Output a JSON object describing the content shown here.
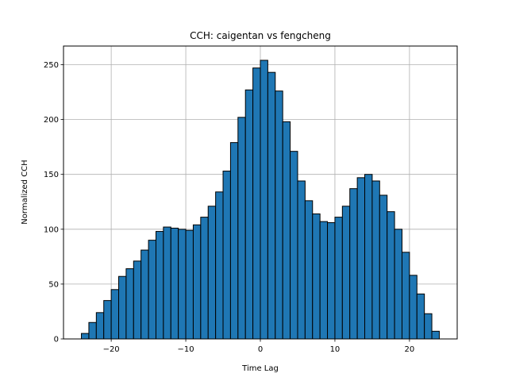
{
  "chart_data": {
    "type": "bar",
    "title": "CCH: caigentan vs fengcheng",
    "xlabel": "Time Lag",
    "ylabel": "Normalized CCH",
    "xlim": [
      -26.4,
      26.4
    ],
    "ylim": [
      0,
      267
    ],
    "xticks": [
      -20,
      -10,
      0,
      10,
      20
    ],
    "yticks": [
      0,
      50,
      100,
      150,
      200,
      250
    ],
    "grid": true,
    "bar_color": "#1f77b4",
    "edge_color": "#000000",
    "bin_start": -24,
    "bin_width": 1,
    "values": [
      5,
      15,
      24,
      35,
      45,
      57,
      64,
      71,
      81,
      90,
      98,
      102,
      101,
      100,
      99,
      104,
      111,
      121,
      134,
      153,
      179,
      202,
      227,
      247,
      254,
      243,
      226,
      198,
      171,
      144,
      126,
      114,
      107,
      106,
      111,
      121,
      137,
      147,
      150,
      144,
      131,
      116,
      100,
      79,
      58,
      41,
      23,
      7
    ]
  }
}
